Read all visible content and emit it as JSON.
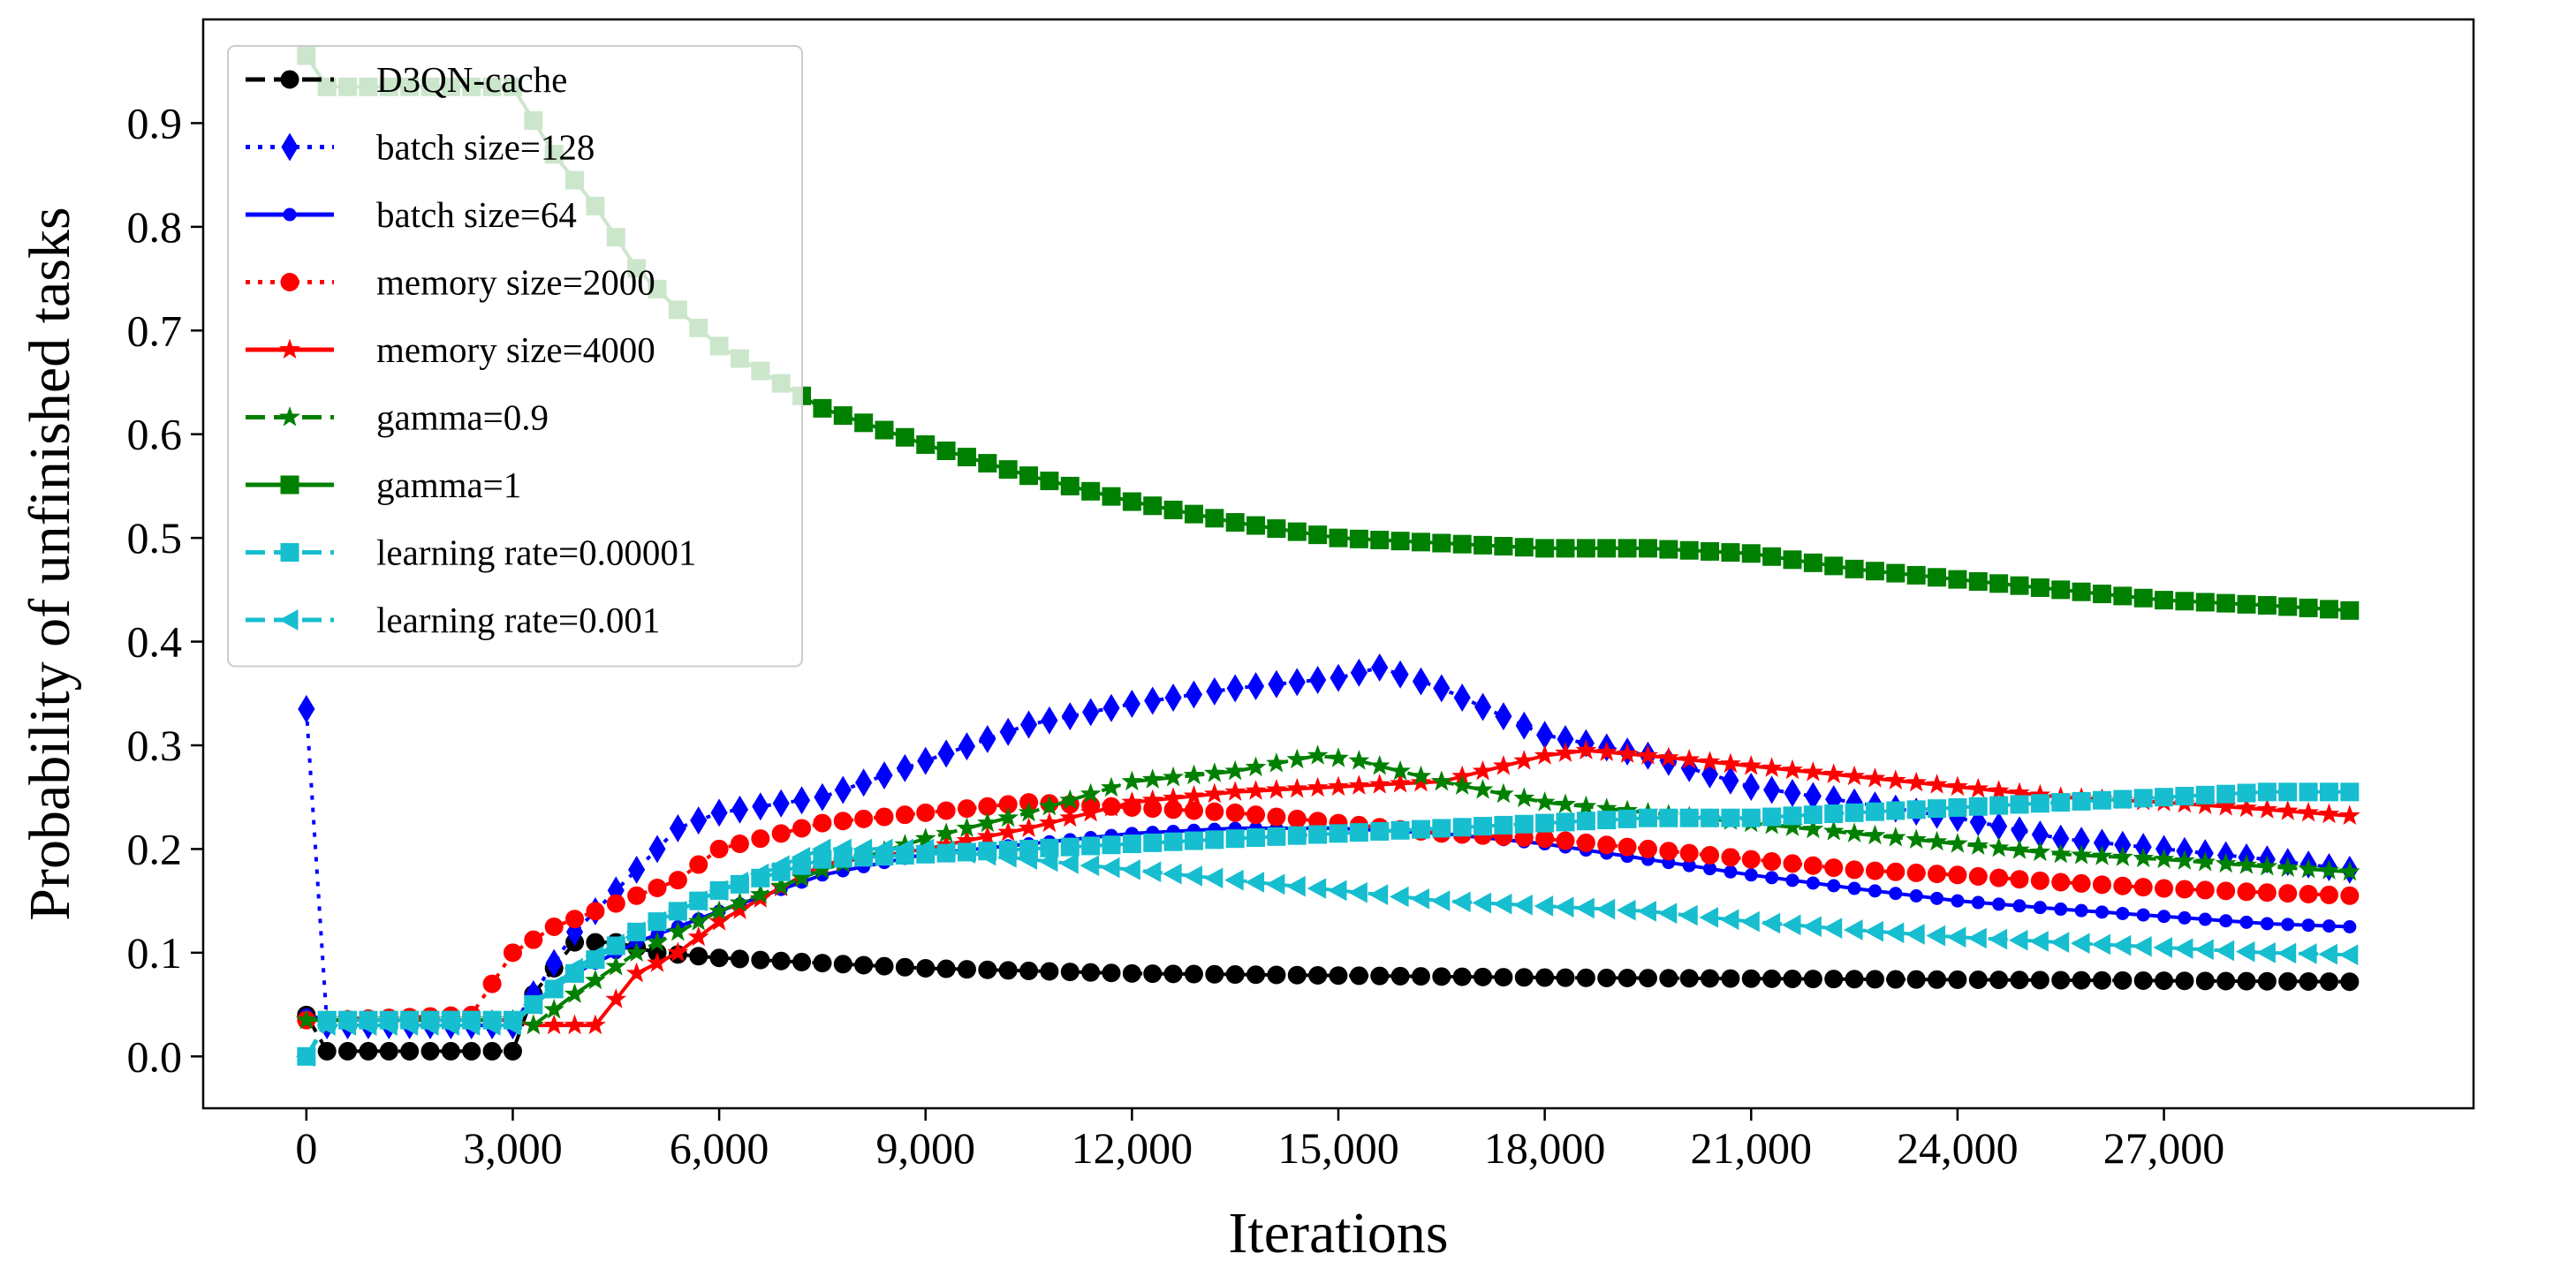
{
  "chart_data": {
    "type": "line",
    "title": "",
    "xlabel": "Iterations",
    "ylabel": "Probability of unfinished tasks",
    "xlim": [
      -1500,
      31500
    ],
    "ylim": [
      -0.05,
      1.0
    ],
    "x_ticks": [
      0,
      3000,
      6000,
      9000,
      12000,
      15000,
      18000,
      21000,
      24000,
      27000
    ],
    "x_tick_labels": [
      "0",
      "3,000",
      "6,000",
      "9,000",
      "12,000",
      "15,000",
      "18,000",
      "21,000",
      "24,000",
      "27,000"
    ],
    "y_ticks": [
      0.0,
      0.1,
      0.2,
      0.3,
      0.4,
      0.5,
      0.6,
      0.7,
      0.8,
      0.9
    ],
    "y_tick_labels": [
      "0.0",
      "0.1",
      "0.2",
      "0.3",
      "0.4",
      "0.5",
      "0.6",
      "0.7",
      "0.8",
      "0.9"
    ],
    "legend_position": "top-left",
    "x_step": 300,
    "x_end": 29700,
    "series": [
      {
        "name": "D3QN-cache",
        "color": "#000000",
        "dash": "dashed",
        "marker": "circle",
        "points": [
          [
            0,
            0.04
          ],
          [
            300,
            0.005
          ],
          [
            3000,
            0.005
          ],
          [
            3300,
            0.06
          ],
          [
            3900,
            0.11
          ],
          [
            4500,
            0.11
          ],
          [
            5100,
            0.1
          ],
          [
            6000,
            0.095
          ],
          [
            7500,
            0.09
          ],
          [
            9000,
            0.085
          ],
          [
            12000,
            0.08
          ],
          [
            15000,
            0.078
          ],
          [
            18000,
            0.076
          ],
          [
            21000,
            0.075
          ],
          [
            24000,
            0.074
          ],
          [
            27000,
            0.073
          ],
          [
            29700,
            0.072
          ]
        ]
      },
      {
        "name": "batch size=128",
        "color": "#0000ff",
        "dash": "dotted",
        "marker": "diamond",
        "points": [
          [
            0,
            0.335
          ],
          [
            300,
            0.03
          ],
          [
            3000,
            0.03
          ],
          [
            3300,
            0.06
          ],
          [
            3900,
            0.12
          ],
          [
            4800,
            0.18
          ],
          [
            5400,
            0.22
          ],
          [
            6000,
            0.235
          ],
          [
            7500,
            0.25
          ],
          [
            9000,
            0.285
          ],
          [
            10500,
            0.32
          ],
          [
            12000,
            0.34
          ],
          [
            13500,
            0.355
          ],
          [
            15000,
            0.365
          ],
          [
            15600,
            0.375
          ],
          [
            16500,
            0.355
          ],
          [
            18000,
            0.31
          ],
          [
            19500,
            0.29
          ],
          [
            21000,
            0.26
          ],
          [
            22500,
            0.245
          ],
          [
            24000,
            0.23
          ],
          [
            25500,
            0.21
          ],
          [
            27000,
            0.2
          ],
          [
            28500,
            0.19
          ],
          [
            29700,
            0.18
          ]
        ]
      },
      {
        "name": "batch size=64",
        "color": "#0000ff",
        "dash": "solid",
        "marker": "smalldot",
        "points": [
          [
            0,
            0.04
          ],
          [
            300,
            0.035
          ],
          [
            3000,
            0.035
          ],
          [
            3300,
            0.05
          ],
          [
            3900,
            0.08
          ],
          [
            4800,
            0.11
          ],
          [
            6000,
            0.14
          ],
          [
            7500,
            0.175
          ],
          [
            9000,
            0.195
          ],
          [
            10500,
            0.205
          ],
          [
            12000,
            0.215
          ],
          [
            13500,
            0.22
          ],
          [
            15000,
            0.22
          ],
          [
            16500,
            0.215
          ],
          [
            18000,
            0.205
          ],
          [
            19500,
            0.19
          ],
          [
            21000,
            0.175
          ],
          [
            22500,
            0.162
          ],
          [
            24000,
            0.15
          ],
          [
            25500,
            0.142
          ],
          [
            27000,
            0.135
          ],
          [
            28500,
            0.128
          ],
          [
            29700,
            0.125
          ]
        ]
      },
      {
        "name": "memory size=2000",
        "color": "#ff0000",
        "dash": "dotted",
        "marker": "circle",
        "points": [
          [
            0,
            0.035
          ],
          [
            300,
            0.035
          ],
          [
            2400,
            0.04
          ],
          [
            3000,
            0.1
          ],
          [
            3600,
            0.125
          ],
          [
            4200,
            0.14
          ],
          [
            5400,
            0.17
          ],
          [
            6000,
            0.2
          ],
          [
            7500,
            0.225
          ],
          [
            9000,
            0.235
          ],
          [
            10500,
            0.245
          ],
          [
            12000,
            0.24
          ],
          [
            13500,
            0.235
          ],
          [
            15000,
            0.225
          ],
          [
            16500,
            0.215
          ],
          [
            18000,
            0.21
          ],
          [
            19500,
            0.2
          ],
          [
            21000,
            0.19
          ],
          [
            22500,
            0.18
          ],
          [
            24000,
            0.175
          ],
          [
            25500,
            0.168
          ],
          [
            27000,
            0.162
          ],
          [
            28500,
            0.158
          ],
          [
            29700,
            0.155
          ]
        ]
      },
      {
        "name": "memory size=4000",
        "color": "#ff0000",
        "dash": "solid",
        "marker": "star",
        "points": [
          [
            0,
            0.035
          ],
          [
            300,
            0.035
          ],
          [
            3000,
            0.035
          ],
          [
            3300,
            0.03
          ],
          [
            4200,
            0.03
          ],
          [
            4800,
            0.08
          ],
          [
            5400,
            0.1
          ],
          [
            6000,
            0.13
          ],
          [
            7500,
            0.185
          ],
          [
            9000,
            0.2
          ],
          [
            10500,
            0.22
          ],
          [
            12000,
            0.245
          ],
          [
            13500,
            0.255
          ],
          [
            15000,
            0.26
          ],
          [
            16500,
            0.265
          ],
          [
            18000,
            0.29
          ],
          [
            18600,
            0.295
          ],
          [
            19500,
            0.29
          ],
          [
            21000,
            0.28
          ],
          [
            22500,
            0.27
          ],
          [
            24000,
            0.26
          ],
          [
            25500,
            0.25
          ],
          [
            27000,
            0.245
          ],
          [
            28500,
            0.238
          ],
          [
            29700,
            0.232
          ]
        ]
      },
      {
        "name": "gamma=0.9",
        "color": "#008000",
        "dash": "dashed",
        "marker": "star",
        "points": [
          [
            0,
            0.035
          ],
          [
            300,
            0.035
          ],
          [
            3000,
            0.035
          ],
          [
            3300,
            0.03
          ],
          [
            3900,
            0.06
          ],
          [
            4800,
            0.1
          ],
          [
            6000,
            0.14
          ],
          [
            7500,
            0.18
          ],
          [
            9000,
            0.21
          ],
          [
            10500,
            0.235
          ],
          [
            12000,
            0.265
          ],
          [
            13500,
            0.275
          ],
          [
            14700,
            0.29
          ],
          [
            15300,
            0.285
          ],
          [
            16500,
            0.265
          ],
          [
            18000,
            0.245
          ],
          [
            19500,
            0.235
          ],
          [
            21000,
            0.225
          ],
          [
            22500,
            0.215
          ],
          [
            24000,
            0.205
          ],
          [
            25500,
            0.195
          ],
          [
            27000,
            0.19
          ],
          [
            28500,
            0.183
          ],
          [
            29700,
            0.178
          ]
        ]
      },
      {
        "name": "gamma=1",
        "color": "#008000",
        "dash": "solid",
        "marker": "square",
        "points": [
          [
            0,
            0.965
          ],
          [
            300,
            0.935
          ],
          [
            3000,
            0.935
          ],
          [
            3600,
            0.87
          ],
          [
            4200,
            0.82
          ],
          [
            4800,
            0.76
          ],
          [
            5400,
            0.72
          ],
          [
            6000,
            0.685
          ],
          [
            7500,
            0.625
          ],
          [
            9000,
            0.59
          ],
          [
            10500,
            0.56
          ],
          [
            12000,
            0.535
          ],
          [
            13500,
            0.515
          ],
          [
            15000,
            0.5
          ],
          [
            16500,
            0.495
          ],
          [
            18000,
            0.49
          ],
          [
            19500,
            0.49
          ],
          [
            21000,
            0.485
          ],
          [
            22500,
            0.47
          ],
          [
            24000,
            0.46
          ],
          [
            25500,
            0.45
          ],
          [
            27000,
            0.44
          ],
          [
            28500,
            0.435
          ],
          [
            29700,
            0.43
          ]
        ]
      },
      {
        "name": "learning rate=0.00001",
        "color": "#17becf",
        "dash": "dashed",
        "marker": "square",
        "points": [
          [
            0,
            0.0
          ],
          [
            300,
            0.035
          ],
          [
            3000,
            0.035
          ],
          [
            3300,
            0.05
          ],
          [
            3900,
            0.08
          ],
          [
            4800,
            0.12
          ],
          [
            6000,
            0.16
          ],
          [
            7500,
            0.19
          ],
          [
            9000,
            0.195
          ],
          [
            10500,
            0.2
          ],
          [
            12000,
            0.205
          ],
          [
            13500,
            0.21
          ],
          [
            15000,
            0.215
          ],
          [
            16500,
            0.22
          ],
          [
            18000,
            0.225
          ],
          [
            19500,
            0.23
          ],
          [
            21000,
            0.23
          ],
          [
            22500,
            0.235
          ],
          [
            24000,
            0.24
          ],
          [
            25500,
            0.245
          ],
          [
            27000,
            0.25
          ],
          [
            28500,
            0.255
          ],
          [
            29700,
            0.255
          ]
        ]
      },
      {
        "name": "learning rate=0.001",
        "color": "#17becf",
        "dash": "dashed",
        "marker": "triangle-left",
        "points": [
          [
            0,
            0.0
          ],
          [
            300,
            0.03
          ],
          [
            3000,
            0.03
          ],
          [
            3300,
            0.05
          ],
          [
            3900,
            0.085
          ],
          [
            4800,
            0.12
          ],
          [
            6000,
            0.16
          ],
          [
            7500,
            0.2
          ],
          [
            9000,
            0.2
          ],
          [
            10500,
            0.19
          ],
          [
            12000,
            0.18
          ],
          [
            13500,
            0.17
          ],
          [
            15000,
            0.16
          ],
          [
            16500,
            0.15
          ],
          [
            18000,
            0.145
          ],
          [
            19500,
            0.14
          ],
          [
            21000,
            0.13
          ],
          [
            22500,
            0.122
          ],
          [
            24000,
            0.115
          ],
          [
            25500,
            0.11
          ],
          [
            27000,
            0.105
          ],
          [
            28500,
            0.1
          ],
          [
            29700,
            0.098
          ]
        ]
      }
    ]
  }
}
